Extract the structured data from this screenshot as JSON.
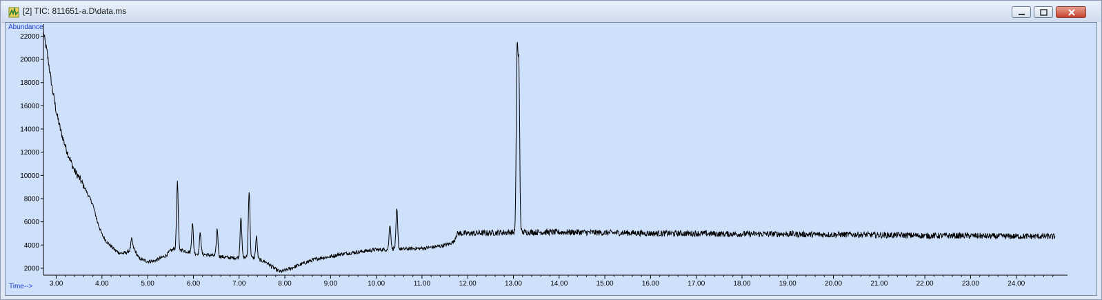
{
  "window": {
    "title": "[2] TIC: 811651-a.D\\data.ms",
    "icon": "chromatogram-app-icon",
    "controls": [
      "minimize-icon",
      "maximize-icon",
      "close-icon"
    ]
  },
  "colors": {
    "plot_background": "#cfe0fb",
    "trace": "#000000",
    "axis": "#000000",
    "axis_title": "#1a3fd0"
  },
  "chart_data": {
    "type": "line",
    "title": "",
    "xlabel": "Time-->",
    "ylabel": "Abundance",
    "xlim": [
      2.72,
      25.0
    ],
    "ylim": [
      1400,
      22800
    ],
    "grid": false,
    "x_ticks": [
      "3.00",
      "4.00",
      "5.00",
      "6.00",
      "7.00",
      "8.00",
      "9.00",
      "10.00",
      "11.00",
      "12.00",
      "13.00",
      "14.00",
      "15.00",
      "16.00",
      "17.00",
      "18.00",
      "19.00",
      "20.00",
      "21.00",
      "22.00",
      "23.00",
      "24.00"
    ],
    "y_ticks": [
      "2000",
      "4000",
      "6000",
      "8000",
      "10000",
      "12000",
      "14000",
      "16000",
      "18000",
      "20000",
      "22000"
    ],
    "series": [
      {
        "x": [
          2.72,
          2.8,
          2.9,
          3.0,
          3.1,
          3.2,
          3.3,
          3.4,
          3.5,
          3.6,
          3.7,
          3.8,
          3.9,
          4.0,
          4.1,
          4.2,
          4.3,
          4.4,
          4.5,
          4.6,
          4.7,
          4.8,
          4.9,
          5.0,
          5.1,
          5.2,
          5.3,
          5.4,
          5.5,
          5.6,
          5.7,
          5.8,
          5.9,
          6.0,
          6.2,
          6.4,
          6.6,
          6.8,
          7.0,
          7.2,
          7.4,
          7.6,
          7.7,
          7.8,
          7.9,
          8.0,
          8.2,
          8.4,
          8.6,
          8.8,
          9.0,
          9.2,
          9.4,
          9.6,
          9.8,
          10.0,
          10.2,
          10.4,
          10.6,
          10.8,
          11.0,
          11.2,
          11.4,
          11.6,
          11.7,
          11.75,
          11.8,
          12.0,
          12.5,
          13.0,
          13.5,
          14.0,
          14.5,
          15.0,
          15.5,
          16.0,
          16.5,
          17.0,
          17.5,
          18.0,
          18.5,
          19.0,
          19.5,
          20.0,
          20.5,
          21.0,
          21.5,
          22.0,
          22.5,
          23.0,
          23.5,
          24.0,
          24.5,
          25.0
        ],
        "y": [
          22300,
          20600,
          17800,
          15500,
          13800,
          12500,
          11400,
          10400,
          9800,
          9100,
          8300,
          7500,
          6000,
          4900,
          4300,
          3900,
          3500,
          3300,
          3300,
          3500,
          3700,
          2900,
          2700,
          2600,
          2600,
          2700,
          2900,
          3100,
          3500,
          3700,
          3600,
          3500,
          3400,
          3300,
          3200,
          3100,
          3000,
          2900,
          2900,
          2950,
          2800,
          2500,
          2200,
          1900,
          1700,
          1800,
          2100,
          2400,
          2700,
          2900,
          3000,
          3200,
          3300,
          3400,
          3500,
          3600,
          3600,
          3700,
          3650,
          3700,
          3700,
          3800,
          3900,
          4100,
          4300,
          4900,
          5000,
          5000,
          5050,
          5100,
          5100,
          5100,
          5100,
          5050,
          5050,
          5000,
          5000,
          5000,
          4950,
          4950,
          4950,
          4950,
          4900,
          4900,
          4900,
          4850,
          4850,
          4800,
          4800,
          4800,
          4750,
          4750,
          4750,
          4700
        ],
        "peaks": [
          {
            "rt": 4.65,
            "height": 4500
          },
          {
            "rt": 5.65,
            "height": 9400
          },
          {
            "rt": 5.98,
            "height": 5900
          },
          {
            "rt": 6.15,
            "height": 5000
          },
          {
            "rt": 6.52,
            "height": 5400
          },
          {
            "rt": 7.04,
            "height": 6500
          },
          {
            "rt": 7.22,
            "height": 8700
          },
          {
            "rt": 7.38,
            "height": 4700
          },
          {
            "rt": 10.3,
            "height": 5800
          },
          {
            "rt": 10.45,
            "height": 7100
          },
          {
            "rt": 13.08,
            "height": 20200
          },
          {
            "rt": 13.12,
            "height": 18500
          }
        ]
      }
    ]
  }
}
